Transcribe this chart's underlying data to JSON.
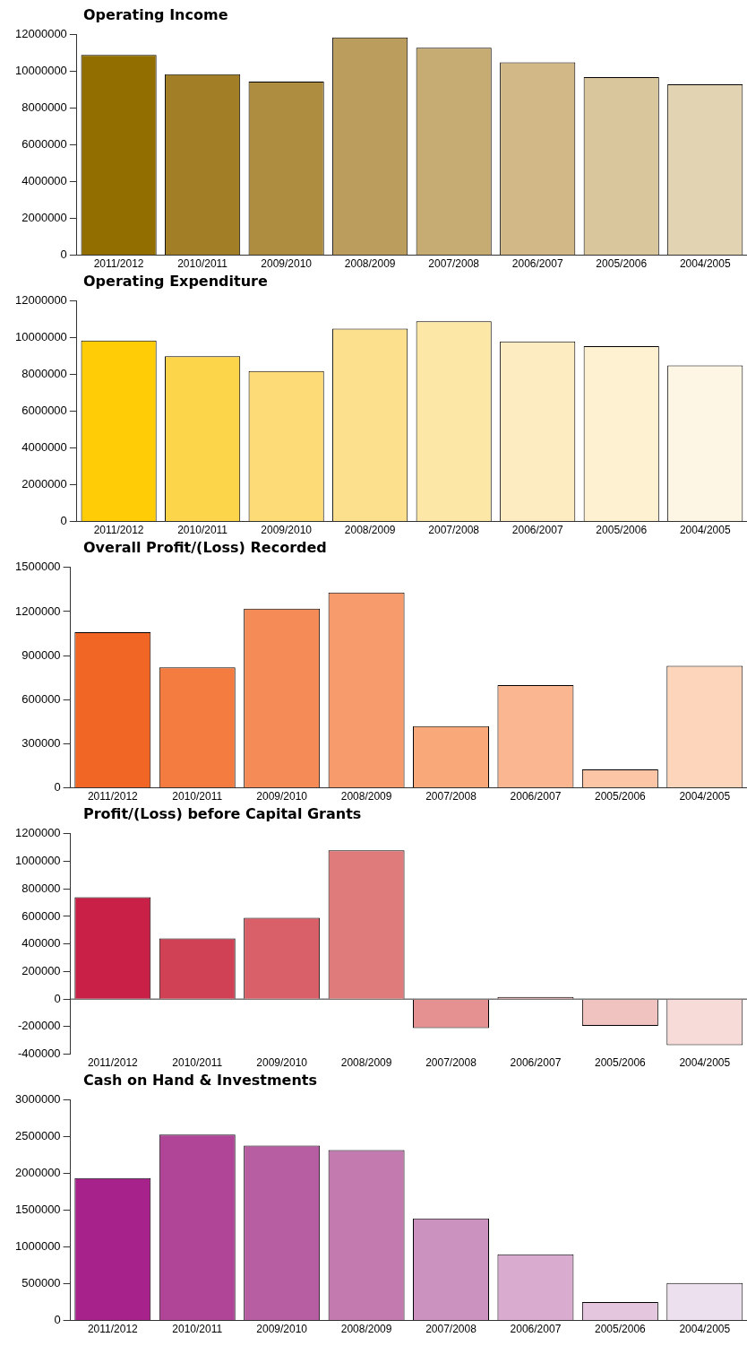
{
  "chart_data": [
    {
      "type": "bar",
      "title": "Operating Income",
      "categories": [
        "2011/2012",
        "2010/2011",
        "2009/2010",
        "2008/2009",
        "2007/2008",
        "2006/2007",
        "2005/2006",
        "2004/2005"
      ],
      "values": [
        10900000,
        9850000,
        9450000,
        11850000,
        11300000,
        10500000,
        9700000,
        9300000
      ],
      "colors": [
        "#926e00",
        "#a27f26",
        "#ae8d40",
        "#bb9e5e",
        "#c6ab72",
        "#d1b886",
        "#d9c69c",
        "#e2d3b2"
      ],
      "ylim": [
        0,
        12000000
      ],
      "yticks": [
        0,
        2000000,
        4000000,
        6000000,
        8000000,
        10000000,
        12000000
      ],
      "grid": false
    },
    {
      "type": "bar",
      "title": "Operating Expenditure",
      "categories": [
        "2011/2012",
        "2010/2011",
        "2009/2010",
        "2008/2009",
        "2007/2008",
        "2006/2007",
        "2005/2006",
        "2004/2005"
      ],
      "values": [
        9850000,
        9000000,
        8200000,
        10500000,
        10900000,
        9800000,
        9550000,
        8500000
      ],
      "colors": [
        "#ffcc05",
        "#fdd54b",
        "#fddc77",
        "#fde08e",
        "#fde7a6",
        "#fdebc1",
        "#fef1d2",
        "#fef6e5"
      ],
      "ylim": [
        0,
        12000000
      ],
      "yticks": [
        0,
        2000000,
        4000000,
        6000000,
        8000000,
        10000000,
        12000000
      ],
      "grid": false
    },
    {
      "type": "bar",
      "title": "Overall Profit/(Loss) Recorded",
      "categories": [
        "2011/2012",
        "2010/2011",
        "2009/2010",
        "2008/2009",
        "2007/2008",
        "2006/2007",
        "2005/2006",
        "2004/2005"
      ],
      "values": [
        1060000,
        820000,
        1220000,
        1330000,
        420000,
        700000,
        125000,
        830000
      ],
      "colors": [
        "#f16624",
        "#f47c40",
        "#f58b56",
        "#f79a6c",
        "#f9a87a",
        "#fab690",
        "#fcc6a6",
        "#fdd5bb"
      ],
      "ylim": [
        0,
        1500000
      ],
      "yticks": [
        0,
        300000,
        600000,
        900000,
        1200000,
        1500000
      ],
      "grid": false
    },
    {
      "type": "bar",
      "title": "Profit/(Loss) before Capital Grants",
      "categories": [
        "2011/2012",
        "2010/2011",
        "2009/2010",
        "2008/2009",
        "2007/2008",
        "2006/2007",
        "2005/2006",
        "2004/2005"
      ],
      "values": [
        740000,
        440000,
        590000,
        1080000,
        -210000,
        15000,
        -195000,
        -335000
      ],
      "colors": [
        "#c82046",
        "#d04155",
        "#d96068",
        "#e07b7c",
        "#e59191",
        "#eaa7a6",
        "#f0c2c0",
        "#f6dbd9"
      ],
      "ylim": [
        -400000,
        1200000
      ],
      "yticks": [
        -400000,
        -200000,
        0,
        200000,
        400000,
        600000,
        800000,
        1000000,
        1200000
      ],
      "grid": false,
      "ref_lines": [
        {
          "axis": "y",
          "value": 0
        }
      ]
    },
    {
      "type": "bar",
      "title": "Cash on Hand & Investments",
      "categories": [
        "2011/2012",
        "2010/2011",
        "2009/2010",
        "2008/2009",
        "2007/2008",
        "2006/2007",
        "2005/2006",
        "2004/2005"
      ],
      "values": [
        1940000,
        2530000,
        2380000,
        2320000,
        1390000,
        900000,
        250000,
        510000
      ],
      "colors": [
        "#a8228b",
        "#b04597",
        "#b75ea2",
        "#c27aaf",
        "#cb91bf",
        "#d8abcf",
        "#e4c7df",
        "#ede0ee"
      ],
      "ylim": [
        0,
        3000000
      ],
      "yticks": [
        0,
        500000,
        1000000,
        1500000,
        2000000,
        2500000,
        3000000
      ],
      "grid": false
    }
  ]
}
